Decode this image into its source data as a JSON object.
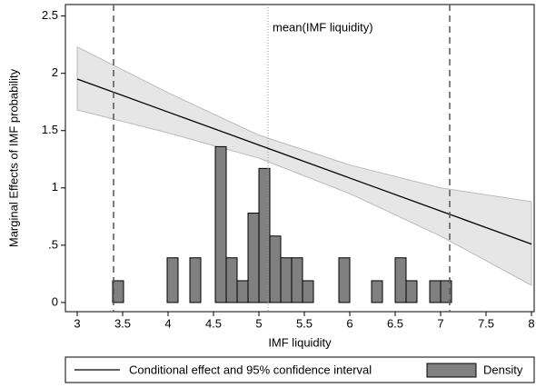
{
  "chart_data": {
    "type": "marginal-effects",
    "xlabel": "IMF liquidity",
    "ylabel": "Marginal Effects of IMF probability",
    "xlim": [
      2.87,
      8.03
    ],
    "ylim": [
      -0.08,
      2.6
    ],
    "xticks": [
      3,
      3.5,
      4,
      4.5,
      5,
      5.5,
      6,
      6.5,
      7,
      7.5,
      8
    ],
    "yticks": [
      0,
      {
        "value": 0.5,
        "label": ".5"
      },
      1,
      1.5,
      2,
      2.5
    ],
    "effect": {
      "name": "Conditional effect and 95% confidence interval",
      "color": "#000000",
      "band_color": "#e6e6e6",
      "x": [
        3,
        4,
        5,
        6,
        7,
        8
      ],
      "values": [
        1.95,
        1.662,
        1.374,
        1.086,
        0.798,
        0.51
      ],
      "upper": [
        2.23,
        1.83,
        1.46,
        1.2,
        1.0,
        0.88
      ],
      "lower": [
        1.68,
        1.48,
        1.26,
        0.95,
        0.58,
        0.15
      ]
    },
    "density": {
      "name": "Density",
      "color": "#808080",
      "bar_width": 0.12,
      "x": [
        3.45,
        4.05,
        4.3,
        4.58,
        4.7,
        4.82,
        4.94,
        5.06,
        5.18,
        5.3,
        5.42,
        5.54,
        5.94,
        6.3,
        6.56,
        6.68,
        6.94,
        7.06
      ],
      "values": [
        0.19,
        0.39,
        0.39,
        1.36,
        0.39,
        0.19,
        0.78,
        1.17,
        0.58,
        0.39,
        0.39,
        0.19,
        0.39,
        0.19,
        0.39,
        0.19,
        0.19,
        0.19
      ]
    },
    "reference_lines": [
      {
        "x": 3.4,
        "style": "dashed"
      },
      {
        "x": 7.1,
        "style": "dashed"
      },
      {
        "x": 5.1,
        "style": "dotted",
        "label": "mean(IMF liquidity)"
      }
    ]
  }
}
